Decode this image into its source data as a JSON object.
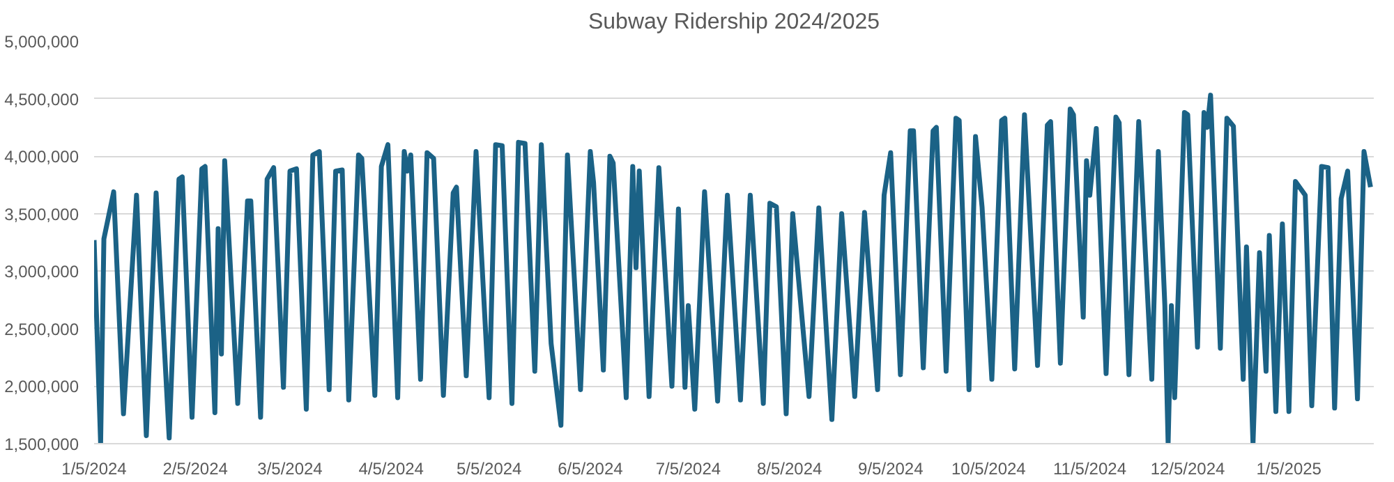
{
  "chart_data": {
    "type": "line",
    "title": "Subway Ridership 2024/2025",
    "x": [
      "2024-01-05",
      "2024-01-07",
      "2024-01-08",
      "2024-01-11",
      "2024-01-14",
      "2024-01-18",
      "2024-01-21",
      "2024-01-24",
      "2024-01-28",
      "2024-01-31",
      "2024-02-01",
      "2024-02-04",
      "2024-02-07",
      "2024-02-08",
      "2024-02-11",
      "2024-02-12",
      "2024-02-13",
      "2024-02-14",
      "2024-02-18",
      "2024-02-21",
      "2024-02-22",
      "2024-02-25",
      "2024-02-27",
      "2024-02-29",
      "2024-03-03",
      "2024-03-05",
      "2024-03-07",
      "2024-03-10",
      "2024-03-12",
      "2024-03-14",
      "2024-03-17",
      "2024-03-19",
      "2024-03-21",
      "2024-03-23",
      "2024-03-26",
      "2024-03-27",
      "2024-03-31",
      "2024-04-02",
      "2024-04-04",
      "2024-04-07",
      "2024-04-09",
      "2024-04-10",
      "2024-04-11",
      "2024-04-14",
      "2024-04-16",
      "2024-04-18",
      "2024-04-21",
      "2024-04-24",
      "2024-04-25",
      "2024-04-28",
      "2024-05-01",
      "2024-05-05",
      "2024-05-07",
      "2024-05-09",
      "2024-05-12",
      "2024-05-14",
      "2024-05-16",
      "2024-05-19",
      "2024-05-21",
      "2024-05-24",
      "2024-05-27",
      "2024-05-29",
      "2024-06-02",
      "2024-06-05",
      "2024-06-06",
      "2024-06-09",
      "2024-06-11",
      "2024-06-12",
      "2024-06-16",
      "2024-06-18",
      "2024-06-19",
      "2024-06-20",
      "2024-06-23",
      "2024-06-26",
      "2024-06-30",
      "2024-07-02",
      "2024-07-04",
      "2024-07-05",
      "2024-07-07",
      "2024-07-10",
      "2024-07-14",
      "2024-07-17",
      "2024-07-21",
      "2024-07-24",
      "2024-07-28",
      "2024-07-30",
      "2024-08-01",
      "2024-08-04",
      "2024-08-06",
      "2024-08-11",
      "2024-08-14",
      "2024-08-18",
      "2024-08-21",
      "2024-08-25",
      "2024-08-28",
      "2024-09-01",
      "2024-09-03",
      "2024-09-05",
      "2024-09-08",
      "2024-09-11",
      "2024-09-12",
      "2024-09-15",
      "2024-09-18",
      "2024-09-19",
      "2024-09-22",
      "2024-09-25",
      "2024-09-26",
      "2024-09-29",
      "2024-10-01",
      "2024-10-03",
      "2024-10-06",
      "2024-10-09",
      "2024-10-10",
      "2024-10-13",
      "2024-10-16",
      "2024-10-20",
      "2024-10-23",
      "2024-10-24",
      "2024-10-27",
      "2024-10-30",
      "2024-10-31",
      "2024-11-03",
      "2024-11-04",
      "2024-11-05",
      "2024-11-07",
      "2024-11-10",
      "2024-11-13",
      "2024-11-14",
      "2024-11-17",
      "2024-11-20",
      "2024-11-24",
      "2024-11-26",
      "2024-11-28",
      "2024-11-29",
      "2024-11-30",
      "2024-12-01",
      "2024-12-04",
      "2024-12-05",
      "2024-12-08",
      "2024-12-10",
      "2024-12-11",
      "2024-12-12",
      "2024-12-15",
      "2024-12-17",
      "2024-12-19",
      "2024-12-22",
      "2024-12-23",
      "2024-12-25",
      "2024-12-27",
      "2024-12-29",
      "2024-12-30",
      "2025-01-01",
      "2025-01-03",
      "2025-01-05",
      "2025-01-07",
      "2025-01-10",
      "2025-01-12",
      "2025-01-15",
      "2025-01-17",
      "2025-01-19",
      "2025-01-21",
      "2025-01-23",
      "2025-01-26",
      "2025-01-28",
      "2025-01-30"
    ],
    "series": [
      {
        "color": "#1b6286",
        "values": [
          3270000,
          1500000,
          3280000,
          3690000,
          1760000,
          3660000,
          1570000,
          3680000,
          1550000,
          3800000,
          3820000,
          1730000,
          3890000,
          3910000,
          1770000,
          3370000,
          2280000,
          3960000,
          1850000,
          3610000,
          3610000,
          1730000,
          3800000,
          3900000,
          1990000,
          3870000,
          3890000,
          1800000,
          4010000,
          4040000,
          1970000,
          3870000,
          3880000,
          1880000,
          4010000,
          3980000,
          1920000,
          3910000,
          4100000,
          1900000,
          4040000,
          3870000,
          4010000,
          2060000,
          4030000,
          3980000,
          1920000,
          3680000,
          3730000,
          2090000,
          4040000,
          1900000,
          4100000,
          4090000,
          1850000,
          4120000,
          4110000,
          2130000,
          4100000,
          2370000,
          1660000,
          4010000,
          1970000,
          4040000,
          3770000,
          2140000,
          4000000,
          3940000,
          1900000,
          3910000,
          3030000,
          3870000,
          1910000,
          3900000,
          2000000,
          3540000,
          1990000,
          2700000,
          1800000,
          3690000,
          1870000,
          3660000,
          1880000,
          3660000,
          1850000,
          3590000,
          3560000,
          1760000,
          3500000,
          1910000,
          3550000,
          1710000,
          3500000,
          1910000,
          3510000,
          1970000,
          3660000,
          4030000,
          2100000,
          4220000,
          4220000,
          2160000,
          4220000,
          4250000,
          2130000,
          4330000,
          4310000,
          1970000,
          4170000,
          3560000,
          2060000,
          4310000,
          4330000,
          2150000,
          4360000,
          2180000,
          4270000,
          4300000,
          2200000,
          4410000,
          4360000,
          2600000,
          3960000,
          3660000,
          4240000,
          2110000,
          4340000,
          4290000,
          2100000,
          4300000,
          2060000,
          4040000,
          2700000,
          1500000,
          2700000,
          1900000,
          4380000,
          4360000,
          2340000,
          4380000,
          4250000,
          4530000,
          2330000,
          4330000,
          4260000,
          2060000,
          3210000,
          1500000,
          3160000,
          2130000,
          3310000,
          1780000,
          3410000,
          1780000,
          3780000,
          3660000,
          1830000,
          3910000,
          3900000,
          1810000,
          3630000,
          3870000,
          1890000,
          4040000,
          3730000
        ]
      }
    ],
    "xlim": [
      "2024-01-05",
      "2025-01-31"
    ],
    "xticks": [
      {
        "value": "2024-01-05",
        "label": "1/5/2024"
      },
      {
        "value": "2024-02-05",
        "label": "2/5/2024"
      },
      {
        "value": "2024-03-05",
        "label": "3/5/2024"
      },
      {
        "value": "2024-04-05",
        "label": "4/5/2024"
      },
      {
        "value": "2024-05-05",
        "label": "5/5/2024"
      },
      {
        "value": "2024-06-05",
        "label": "6/5/2024"
      },
      {
        "value": "2024-07-05",
        "label": "7/5/2024"
      },
      {
        "value": "2024-08-05",
        "label": "8/5/2024"
      },
      {
        "value": "2024-09-05",
        "label": "9/5/2024"
      },
      {
        "value": "2024-10-05",
        "label": "10/5/2024"
      },
      {
        "value": "2024-11-05",
        "label": "11/5/2024"
      },
      {
        "value": "2024-12-05",
        "label": "12/5/2024"
      },
      {
        "value": "2025-01-05",
        "label": "1/5/2025"
      }
    ],
    "ylim": [
      1500000,
      5000000
    ],
    "yticks": [
      {
        "value": 1500000,
        "label": "1,500,000"
      },
      {
        "value": 2000000,
        "label": "2,000,000"
      },
      {
        "value": 2500000,
        "label": "2,500,000"
      },
      {
        "value": 3000000,
        "label": "3,000,000"
      },
      {
        "value": 3500000,
        "label": "3,500,000"
      },
      {
        "value": 4000000,
        "label": "4,000,000"
      },
      {
        "value": 4500000,
        "label": "4,500,000"
      },
      {
        "value": 5000000,
        "label": "5,000,000"
      }
    ],
    "grid": "y",
    "line_style": "solid"
  }
}
